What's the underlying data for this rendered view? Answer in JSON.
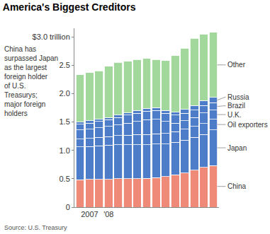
{
  "chart_data": {
    "type": "bar",
    "title": "America's Biggest Creditors",
    "subtitle": "China has surpassed Japan as the largest foreign holder of U.S. Treasurys; major foreign holders",
    "source": "Source: U.S. Treasury",
    "categories": [
      null,
      "2007",
      null,
      "'08",
      null,
      null,
      null,
      null,
      null,
      null,
      null,
      null,
      null,
      null,
      null
    ],
    "series": [
      {
        "name": "China",
        "color": "#ef8a78",
        "values": [
          0.48,
          0.49,
          0.49,
          0.49,
          0.5,
          0.5,
          0.5,
          0.51,
          0.52,
          0.54,
          0.57,
          0.6,
          0.65,
          0.7,
          0.73
        ]
      },
      {
        "name": "Japan",
        "color": "#4d7cc9",
        "values": [
          0.58,
          0.58,
          0.59,
          0.6,
          0.6,
          0.6,
          0.6,
          0.59,
          0.59,
          0.57,
          0.57,
          0.58,
          0.58,
          0.58,
          0.63
        ]
      },
      {
        "name": "Oil exporters",
        "color": "#4d7cc9",
        "values": [
          0.14,
          0.14,
          0.15,
          0.15,
          0.16,
          0.17,
          0.18,
          0.18,
          0.18,
          0.19,
          0.19,
          0.19,
          0.19,
          0.19,
          0.19
        ]
      },
      {
        "name": "U.K.",
        "color": "#4d7cc9",
        "values": [
          0.16,
          0.16,
          0.17,
          0.18,
          0.19,
          0.21,
          0.23,
          0.26,
          0.26,
          0.21,
          0.15,
          0.15,
          0.16,
          0.19,
          0.16
        ]
      },
      {
        "name": "Brazil",
        "color": "#4d7cc9",
        "values": [
          0.1,
          0.11,
          0.11,
          0.12,
          0.13,
          0.14,
          0.14,
          0.15,
          0.15,
          0.14,
          0.14,
          0.13,
          0.13,
          0.13,
          0.13
        ]
      },
      {
        "name": "Russia",
        "color": "#4d7cc9",
        "values": [
          0.04,
          0.04,
          0.04,
          0.04,
          0.04,
          0.04,
          0.05,
          0.05,
          0.05,
          0.05,
          0.05,
          0.07,
          0.08,
          0.09,
          0.09
        ]
      },
      {
        "name": "Other",
        "color": "#a3d89d",
        "values": [
          0.83,
          0.85,
          0.85,
          0.9,
          0.93,
          0.91,
          0.9,
          0.88,
          0.85,
          0.88,
          1.0,
          1.08,
          1.18,
          1.17,
          1.15
        ]
      }
    ],
    "stacked": true,
    "ylim": [
      0,
      3.15
    ],
    "yticks": [
      0,
      0.5,
      {
        "value": 1,
        "label": "1.0"
      },
      1.5,
      {
        "value": 2,
        "label": "2.0"
      },
      2.5,
      {
        "value": 3,
        "label": "$3.0 trillion"
      }
    ],
    "grid": false,
    "legend": "right"
  }
}
